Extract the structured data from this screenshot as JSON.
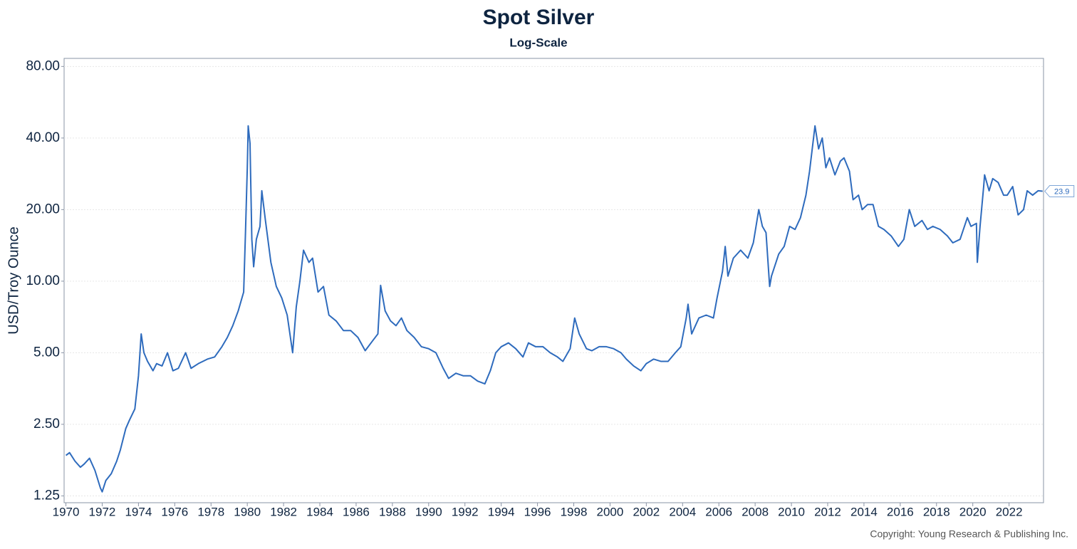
{
  "chart_data": {
    "type": "line",
    "title": "Spot Silver",
    "subtitle": "Log-Scale",
    "y_label": "USD/Troy Ounce",
    "source": "Copyright: Young Research & Publishing Inc.",
    "log_y": true,
    "grid": true,
    "xlim": [
      1969.9,
      2023.9
    ],
    "xticks": [
      1970,
      1972,
      1974,
      1976,
      1978,
      1980,
      1982,
      1984,
      1986,
      1988,
      1990,
      1992,
      1994,
      1996,
      1998,
      2000,
      2002,
      2004,
      2006,
      2008,
      2010,
      2012,
      2014,
      2016,
      2018,
      2020,
      2022
    ],
    "ylim": [
      1.17,
      86.5
    ],
    "yticks": [
      {
        "value": 1.25,
        "label": "1.25"
      },
      {
        "value": 2.5,
        "label": "2.50"
      },
      {
        "value": 5,
        "label": "5.00"
      },
      {
        "value": 10,
        "label": "10.00"
      },
      {
        "value": 20,
        "label": "20.00"
      },
      {
        "value": 40,
        "label": "40.00"
      },
      {
        "value": 80,
        "label": "80.00"
      }
    ],
    "series": [
      {
        "name": "Spot Silver",
        "color": "#2e6bbd",
        "x": [
          1970.0,
          1970.2,
          1970.5,
          1970.8,
          1971.0,
          1971.3,
          1971.6,
          1971.9,
          1972.0,
          1972.2,
          1972.5,
          1972.8,
          1973.0,
          1973.3,
          1973.5,
          1973.8,
          1974.0,
          1974.15,
          1974.3,
          1974.5,
          1974.8,
          1975.0,
          1975.3,
          1975.6,
          1975.9,
          1976.2,
          1976.6,
          1976.9,
          1977.3,
          1977.8,
          1978.2,
          1978.6,
          1978.9,
          1979.2,
          1979.5,
          1979.8,
          1979.9,
          1980.0,
          1980.05,
          1980.15,
          1980.25,
          1980.35,
          1980.5,
          1980.7,
          1980.8,
          1981.0,
          1981.3,
          1981.6,
          1981.9,
          1982.2,
          1982.5,
          1982.7,
          1982.9,
          1983.1,
          1983.4,
          1983.6,
          1983.9,
          1984.2,
          1984.5,
          1984.9,
          1985.3,
          1985.7,
          1986.1,
          1986.5,
          1986.9,
          1987.2,
          1987.35,
          1987.6,
          1987.9,
          1988.2,
          1988.5,
          1988.8,
          1989.2,
          1989.6,
          1990.0,
          1990.4,
          1990.8,
          1991.1,
          1991.5,
          1991.9,
          1992.3,
          1992.7,
          1993.1,
          1993.4,
          1993.7,
          1994.0,
          1994.4,
          1994.8,
          1995.2,
          1995.5,
          1995.9,
          1996.3,
          1996.7,
          1997.1,
          1997.4,
          1997.8,
          1998.05,
          1998.3,
          1998.7,
          1999.0,
          1999.4,
          1999.8,
          2000.2,
          2000.6,
          2000.9,
          2001.3,
          2001.7,
          2002.0,
          2002.4,
          2002.8,
          2003.2,
          2003.6,
          2003.9,
          2004.2,
          2004.3,
          2004.5,
          2004.9,
          2005.3,
          2005.7,
          2005.9,
          2006.2,
          2006.35,
          2006.5,
          2006.8,
          2007.2,
          2007.6,
          2007.9,
          2008.2,
          2008.4,
          2008.6,
          2008.8,
          2008.9,
          2009.3,
          2009.6,
          2009.9,
          2010.2,
          2010.5,
          2010.8,
          2011.0,
          2011.3,
          2011.5,
          2011.7,
          2011.9,
          2012.1,
          2012.4,
          2012.7,
          2012.9,
          2013.2,
          2013.4,
          2013.7,
          2013.9,
          2014.2,
          2014.5,
          2014.8,
          2015.1,
          2015.5,
          2015.9,
          2016.2,
          2016.5,
          2016.8,
          2017.2,
          2017.5,
          2017.8,
          2018.2,
          2018.6,
          2018.9,
          2019.3,
          2019.7,
          2019.9,
          2020.2,
          2020.25,
          2020.4,
          2020.6,
          2020.65,
          2020.9,
          2021.1,
          2021.4,
          2021.7,
          2021.9,
          2022.2,
          2022.5,
          2022.8,
          2023.0,
          2023.3,
          2023.6,
          2023.85
        ],
        "values": [
          1.85,
          1.9,
          1.75,
          1.65,
          1.7,
          1.8,
          1.6,
          1.35,
          1.3,
          1.45,
          1.55,
          1.75,
          1.95,
          2.4,
          2.6,
          2.9,
          4.0,
          6.0,
          5.0,
          4.6,
          4.2,
          4.5,
          4.4,
          5.0,
          4.2,
          4.3,
          5.0,
          4.3,
          4.5,
          4.7,
          4.8,
          5.3,
          5.8,
          6.5,
          7.5,
          9.0,
          16,
          30,
          45,
          38,
          15,
          11.5,
          15,
          17,
          24,
          18,
          12,
          9.5,
          8.5,
          7.2,
          5.0,
          7.8,
          10.0,
          13.5,
          12.0,
          12.5,
          9.0,
          9.5,
          7.2,
          6.8,
          6.2,
          6.2,
          5.8,
          5.1,
          5.6,
          6.0,
          9.6,
          7.5,
          6.8,
          6.5,
          7.0,
          6.2,
          5.8,
          5.3,
          5.2,
          5.0,
          4.3,
          3.9,
          4.1,
          4.0,
          4.0,
          3.8,
          3.7,
          4.2,
          5.0,
          5.3,
          5.5,
          5.2,
          4.8,
          5.5,
          5.3,
          5.3,
          5.0,
          4.8,
          4.6,
          5.2,
          7.0,
          6.0,
          5.2,
          5.1,
          5.3,
          5.3,
          5.2,
          5.0,
          4.7,
          4.4,
          4.2,
          4.5,
          4.7,
          4.6,
          4.6,
          5.0,
          5.3,
          7.0,
          8.0,
          6.0,
          7.0,
          7.2,
          7.0,
          8.5,
          11,
          14,
          10.5,
          12.5,
          13.5,
          12.5,
          14.5,
          20,
          17,
          16,
          9.5,
          10.5,
          13,
          14,
          17,
          16.5,
          18.5,
          23,
          29,
          45,
          36,
          40,
          30,
          33,
          28,
          32,
          33,
          29,
          22,
          23,
          20,
          21,
          21,
          17,
          16.5,
          15.5,
          14,
          15,
          20,
          17,
          18,
          16.5,
          17,
          16.5,
          15.5,
          14.5,
          15,
          18.5,
          17,
          17.5,
          12,
          17,
          25,
          28,
          24,
          27,
          26,
          23,
          23,
          25,
          19,
          20,
          24,
          23,
          24,
          23.9
        ]
      }
    ],
    "annotations": [
      {
        "text": "23.9",
        "x": 2023.85,
        "y": 23.9
      }
    ]
  }
}
